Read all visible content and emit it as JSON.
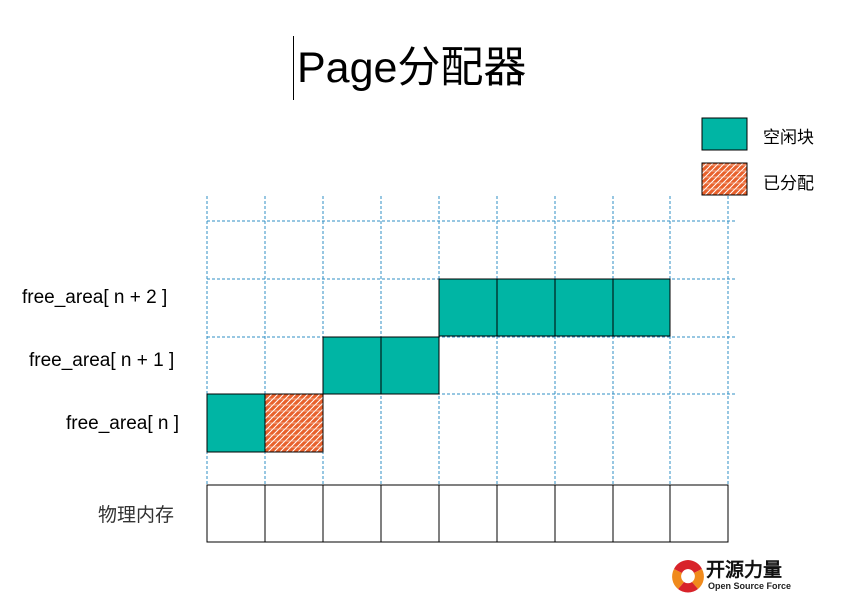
{
  "title": "Page分配器",
  "legend": {
    "free_label": "空闲块",
    "allocated_label": "已分配"
  },
  "rows": {
    "n_plus_2": "free_area[ n + 2 ]",
    "n_plus_1": "free_area[ n + 1 ]",
    "n": "free_area[ n ]"
  },
  "memory_label": "物理内存",
  "logo": {
    "name": "开源力量",
    "subtitle": "Open Source Force"
  },
  "colors": {
    "free": "#00b5a4",
    "allocated": "#e8612c",
    "grid": "#2f8fc4",
    "border": "#000000"
  }
}
